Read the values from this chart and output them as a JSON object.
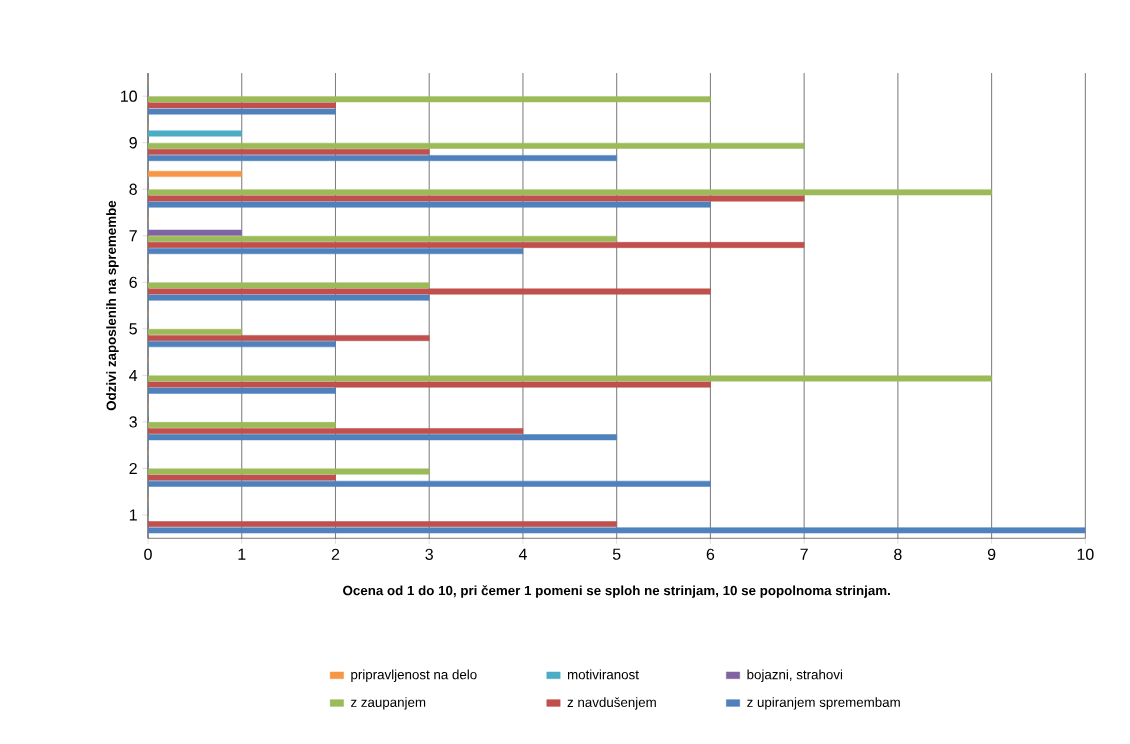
{
  "chart_data": {
    "type": "bar",
    "orientation": "horizontal",
    "xlabel": "Ocena od 1 do 10, pri čemer 1 pomeni se sploh ne strinjam, 10 se popolnoma strinjam.",
    "ylabel": "Odzivi zaposlenih na spremembe",
    "categories": [
      "10",
      "9",
      "8",
      "7",
      "6",
      "5",
      "4",
      "3",
      "2",
      "1"
    ],
    "series": [
      {
        "name": "pripravljenost na delo",
        "color": "#f79646",
        "values": [
          0,
          0,
          1,
          0,
          0,
          0,
          0,
          0,
          0,
          0
        ]
      },
      {
        "name": "motiviranost",
        "color": "#4bacc6",
        "values": [
          0,
          1,
          0,
          0,
          0,
          0,
          0,
          0,
          0,
          0
        ]
      },
      {
        "name": "bojazni, strahovi",
        "color": "#8064a2",
        "values": [
          0,
          0,
          0,
          1,
          0,
          0,
          0,
          0,
          0,
          0
        ]
      },
      {
        "name": "z zaupanjem",
        "color": "#9bbb59",
        "values": [
          6,
          7,
          9,
          5,
          3,
          1,
          9,
          2,
          3,
          0
        ]
      },
      {
        "name": "z navdušenjem",
        "color": "#c0504d",
        "values": [
          2,
          3,
          7,
          7,
          6,
          3,
          6,
          4,
          2,
          5
        ]
      },
      {
        "name": "z upiranjem spremembam",
        "color": "#4f81bd",
        "values": [
          2,
          5,
          6,
          4,
          3,
          2,
          2,
          5,
          6,
          10
        ]
      }
    ],
    "xlim": [
      0,
      10
    ],
    "xticks": [
      0,
      1,
      2,
      3,
      4,
      5,
      6,
      7,
      8,
      9,
      10
    ],
    "grid": "x",
    "legend": "bottom"
  }
}
